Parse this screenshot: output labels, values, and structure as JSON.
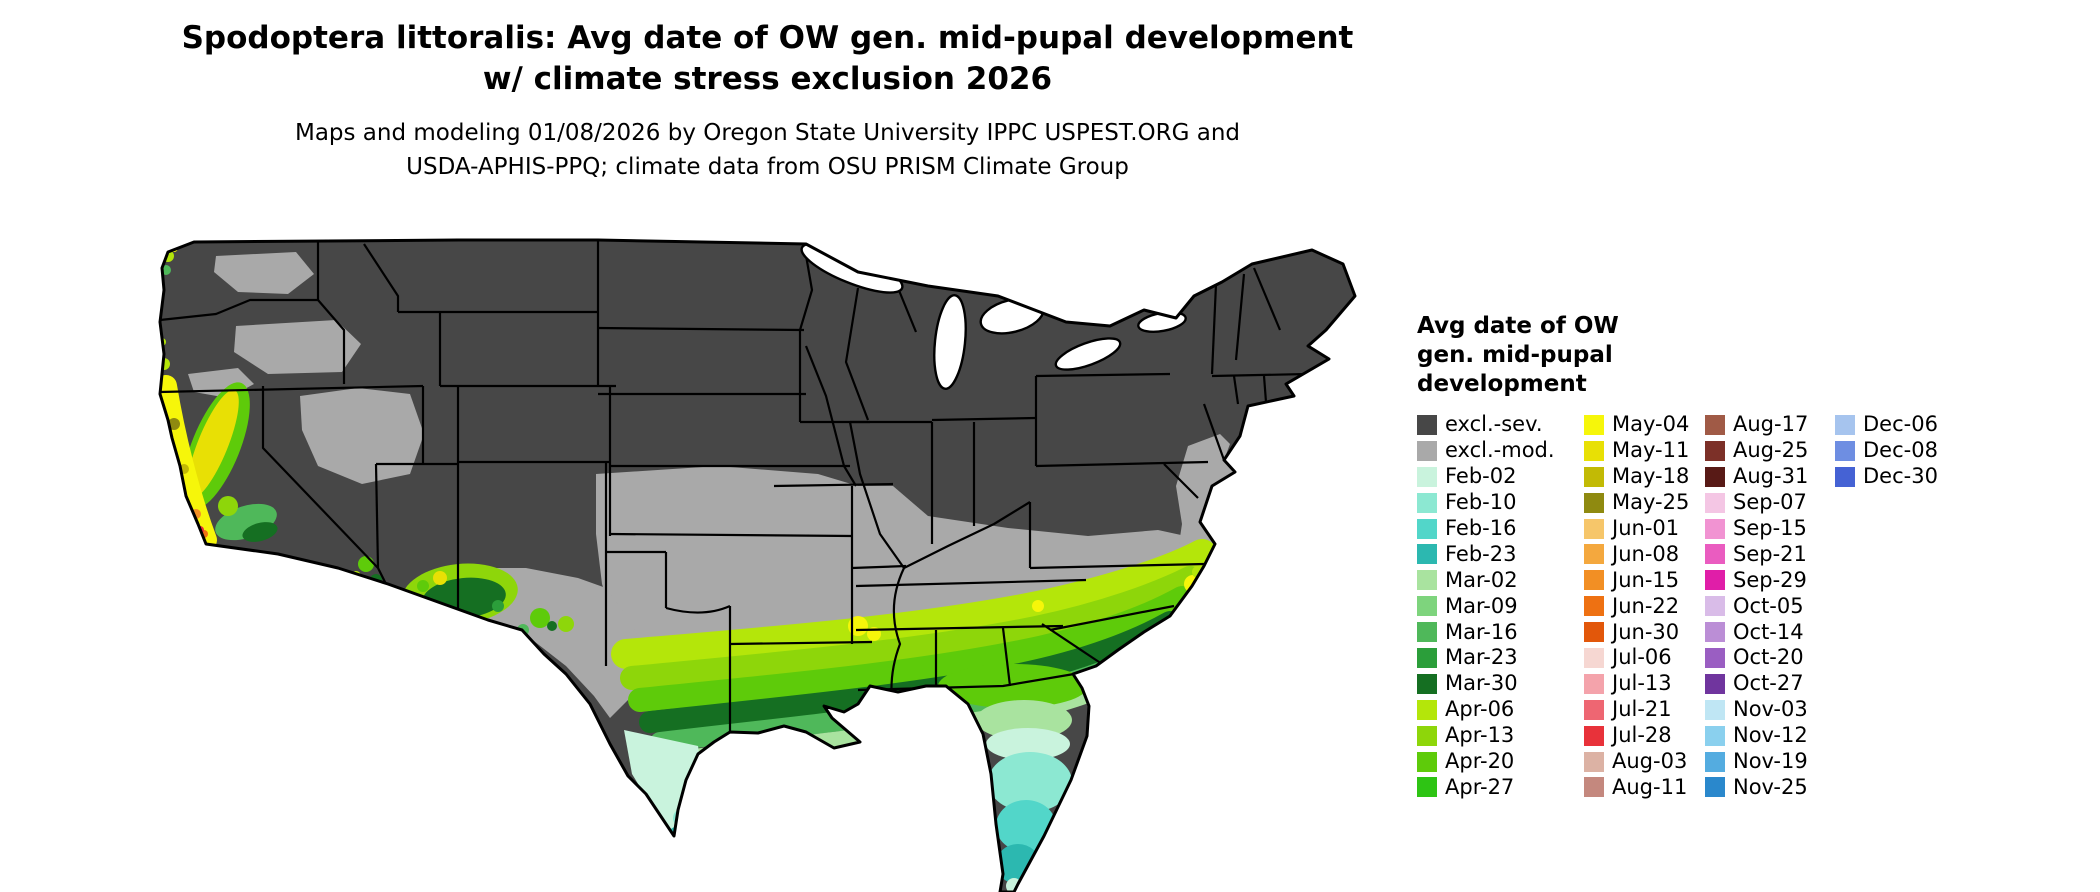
{
  "title": {
    "line1": "Spodoptera littoralis: Avg date of OW gen. mid-pupal development",
    "line2": "w/ climate stress exclusion 2026"
  },
  "subtitle": {
    "line1": "Maps and modeling 01/08/2026 by Oregon State University IPPC USPEST.ORG and",
    "line2": "USDA-APHIS-PPQ; climate data from OSU PRISM Climate Group"
  },
  "legend": {
    "title_line1": "Avg date of OW",
    "title_line2": "gen. mid-pupal",
    "title_line3": "development",
    "columns": [
      {
        "entries": [
          {
            "label": "excl.-sev.",
            "color": "#474747"
          },
          {
            "label": "excl.-mod.",
            "color": "#a9a9a9"
          },
          {
            "label": "Feb-02",
            "color": "#c9f3dd"
          },
          {
            "label": "Feb-10",
            "color": "#8ce8d2"
          },
          {
            "label": "Feb-16",
            "color": "#52d6c9"
          },
          {
            "label": "Feb-23",
            "color": "#2cb8b0"
          },
          {
            "label": "Mar-02",
            "color": "#a9e39f"
          },
          {
            "label": "Mar-09",
            "color": "#7ed47d"
          },
          {
            "label": "Mar-16",
            "color": "#4fb85a"
          },
          {
            "label": "Mar-23",
            "color": "#2b9e3a"
          },
          {
            "label": "Mar-30",
            "color": "#156f22"
          },
          {
            "label": "Apr-06",
            "color": "#b4e60a"
          },
          {
            "label": "Apr-13",
            "color": "#8ed60a"
          },
          {
            "label": "Apr-20",
            "color": "#5ecb0a"
          },
          {
            "label": "Apr-27",
            "color": "#2ec414"
          }
        ]
      },
      {
        "entries": [
          {
            "label": "May-04",
            "color": "#f6f60a"
          },
          {
            "label": "May-11",
            "color": "#e8e005"
          },
          {
            "label": "May-18",
            "color": "#c2ba05"
          },
          {
            "label": "May-25",
            "color": "#8f8a10"
          },
          {
            "label": "Jun-01",
            "color": "#f6c66a"
          },
          {
            "label": "Jun-08",
            "color": "#f4a83e"
          },
          {
            "label": "Jun-15",
            "color": "#f28f24"
          },
          {
            "label": "Jun-22",
            "color": "#ee7112"
          },
          {
            "label": "Jun-30",
            "color": "#e2570a"
          },
          {
            "label": "Jul-06",
            "color": "#f6d7d2"
          },
          {
            "label": "Jul-13",
            "color": "#f4a3ab"
          },
          {
            "label": "Jul-21",
            "color": "#ee6672"
          },
          {
            "label": "Jul-28",
            "color": "#e8323a"
          },
          {
            "label": "Aug-03",
            "color": "#dcb2a4"
          },
          {
            "label": "Aug-11",
            "color": "#c4887e"
          }
        ]
      },
      {
        "entries": [
          {
            "label": "Aug-17",
            "color": "#a05a46"
          },
          {
            "label": "Aug-25",
            "color": "#7c3028"
          },
          {
            "label": "Aug-31",
            "color": "#581a16"
          },
          {
            "label": "Sep-07",
            "color": "#f4c6e4"
          },
          {
            "label": "Sep-15",
            "color": "#f193d2"
          },
          {
            "label": "Sep-21",
            "color": "#ea5cc0"
          },
          {
            "label": "Sep-29",
            "color": "#e01ea8"
          },
          {
            "label": "Oct-05",
            "color": "#d9bce8"
          },
          {
            "label": "Oct-14",
            "color": "#bb8ed6"
          },
          {
            "label": "Oct-20",
            "color": "#9a5ec2"
          },
          {
            "label": "Oct-27",
            "color": "#70359e"
          },
          {
            "label": "Nov-03",
            "color": "#bfe6f4"
          },
          {
            "label": "Nov-12",
            "color": "#8ad0ee"
          },
          {
            "label": "Nov-19",
            "color": "#54ace0"
          },
          {
            "label": "Nov-25",
            "color": "#2a88cc"
          }
        ]
      },
      {
        "entries": [
          {
            "label": "Dec-06",
            "color": "#a6c4ee"
          },
          {
            "label": "Dec-08",
            "color": "#6e8ee2"
          },
          {
            "label": "Dec-30",
            "color": "#4562d4"
          }
        ]
      }
    ]
  },
  "map": {
    "excluded_severe_color": "#474747",
    "excluded_moderate_color": "#a9a9a9",
    "boundary_color": "#000000",
    "water_color": "#ffffff"
  }
}
